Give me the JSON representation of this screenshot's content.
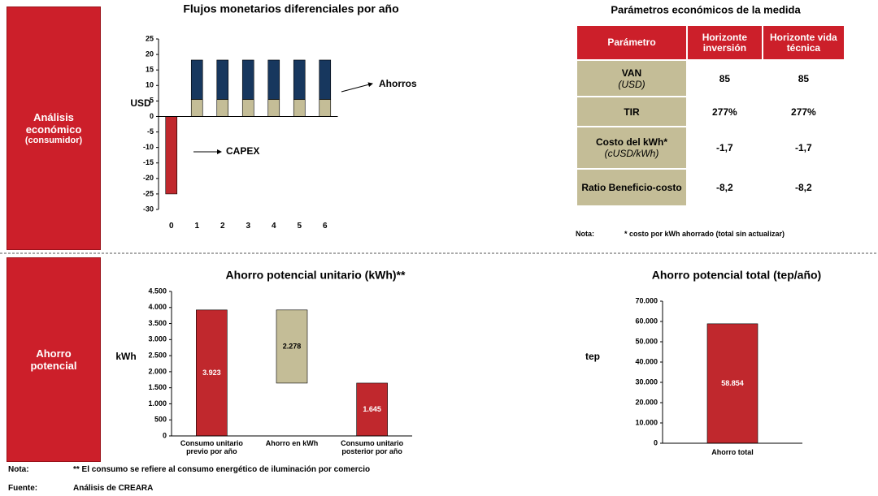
{
  "sections": [
    {
      "label": "Análisis económico",
      "sublabel": "(consumidor)"
    },
    {
      "label": "Ahorro potencial"
    }
  ],
  "chart_data": [
    {
      "type": "stacked_bar",
      "title": "Flujos monetarios diferenciales por año",
      "ylabel": "USD",
      "categories": [
        "0",
        "1",
        "2",
        "3",
        "4",
        "5",
        "6"
      ],
      "series": [
        {
          "name": "CAPEX",
          "color": "#c0282d",
          "values": [
            -25,
            null,
            null,
            null,
            null,
            null,
            null
          ]
        },
        {
          "color": "#c4bd97",
          "values": [
            null,
            5.5,
            5.5,
            5.5,
            5.5,
            5.5,
            5.5
          ]
        },
        {
          "name": "Ahorros",
          "color": "#17375e",
          "values": [
            null,
            12.7,
            12.7,
            12.7,
            12.7,
            12.7,
            12.7
          ]
        }
      ],
      "ylim": [
        -30,
        25
      ],
      "yticks": [
        -30,
        -25,
        -20,
        -15,
        -10,
        -5,
        0,
        5,
        10,
        15,
        20,
        25
      ]
    },
    {
      "type": "waterfall",
      "title": "Ahorro potencial unitario (kWh)**",
      "ylabel": "kWh",
      "categories": [
        "Consumo unitario previo por año",
        "Ahorro en kWh",
        "Consumo unitario posterior por año"
      ],
      "values": [
        3923,
        2278,
        1645
      ],
      "value_labels": [
        "3.923",
        "2.278",
        "1.645"
      ],
      "colors": [
        "#c0282d",
        "#c4bd97",
        "#c0282d"
      ],
      "ylim": [
        0,
        4500
      ],
      "yticks": [
        0,
        {
          "value": 500,
          "label": "500"
        },
        {
          "value": 1000,
          "label": "1.000"
        },
        {
          "value": 1500,
          "label": "1.500"
        },
        {
          "value": 2000,
          "label": "2.000"
        },
        {
          "value": 2500,
          "label": "2.500"
        },
        {
          "value": 3000,
          "label": "3.000"
        },
        {
          "value": 3500,
          "label": "3.500"
        },
        {
          "value": 4000,
          "label": "4.000"
        },
        {
          "value": 4500,
          "label": "4.500"
        }
      ]
    },
    {
      "type": "bar",
      "title": "Ahorro potencial total (tep/año)",
      "ylabel": "tep",
      "categories": [
        "Ahorro total"
      ],
      "values": [
        58854
      ],
      "value_labels": [
        "58.854"
      ],
      "colors": [
        "#c0282d"
      ],
      "ylim": [
        0,
        70000
      ],
      "yticks": [
        0,
        {
          "value": 10000,
          "label": "10.000"
        },
        {
          "value": 20000,
          "label": "20.000"
        },
        {
          "value": 30000,
          "label": "30.000"
        },
        {
          "value": 40000,
          "label": "40.000"
        },
        {
          "value": 50000,
          "label": "50.000"
        },
        {
          "value": 60000,
          "label": "60.000"
        },
        {
          "value": 70000,
          "label": "70.000"
        }
      ]
    }
  ],
  "table": {
    "title": "Parámetros económicos de la medida",
    "header": [
      "Parámetro",
      "Horizonte inversión",
      "Horizonte vida técnica"
    ],
    "rows": [
      {
        "name": "VAN",
        "unit": "(USD)",
        "values": [
          "85",
          "85"
        ]
      },
      {
        "name": "TIR",
        "values": [
          "277%",
          "277%"
        ]
      },
      {
        "name": "Costo del kWh*",
        "unit": "(cUSD/kWh)",
        "values": [
          "-1,7",
          "-1,7"
        ]
      },
      {
        "name": "Ratio Beneficio-costo",
        "values": [
          "-8,2",
          "-8,2"
        ]
      }
    ],
    "note_label": "Nota:",
    "note": "* costo por kWh ahorrado (total sin actualizar)"
  },
  "footer": [
    {
      "label": "Nota:",
      "text": "** El consumo se refiere al consumo energético de iluminación por comercio"
    },
    {
      "label": "Fuente:",
      "text": "Análisis de CREARA"
    }
  ]
}
